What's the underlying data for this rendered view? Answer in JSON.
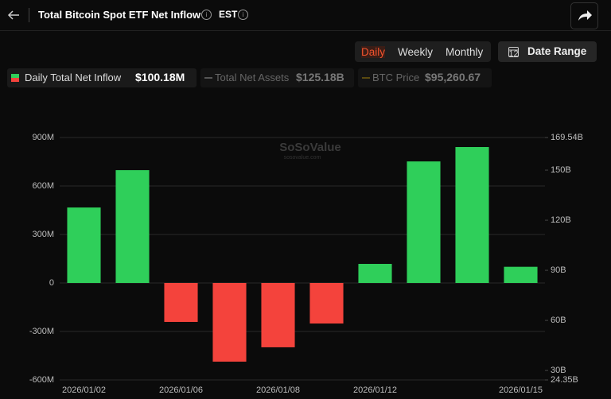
{
  "header": {
    "title": "Total Bitcoin Spot ETF Net Inflow",
    "timezone": "EST"
  },
  "controls": {
    "tabs": [
      "Daily",
      "Weekly",
      "Monthly"
    ],
    "date_range": "Date Range"
  },
  "legend": [
    {
      "name": "Daily Total Net Inflow",
      "value": "$100.18M"
    },
    {
      "name": "Total Net Assets",
      "value": "$125.18B"
    },
    {
      "name": "BTC Price",
      "value": "$95,260.67"
    }
  ],
  "chart_data": {
    "type": "bar",
    "watermark": "SoSoValue",
    "watermark_sub": "sosovalue.com",
    "categories": [
      "2026/01/02",
      null,
      "2026/01/06",
      null,
      "2026/01/08",
      null,
      "2026/01/12",
      null,
      null,
      "2026/01/15"
    ],
    "values": [
      467,
      698,
      -241,
      -487,
      -398,
      -251,
      118,
      752,
      841,
      100
    ],
    "positive_color": "#2fcf5a",
    "negative_color": "#f4433c",
    "ylim": [
      -600,
      900
    ],
    "yticks": [
      {
        "value": -600,
        "label": "-600M"
      },
      {
        "value": -300,
        "label": "-300M"
      },
      0,
      {
        "value": 300,
        "label": "300M"
      },
      {
        "value": 600,
        "label": "600M"
      },
      {
        "value": 900,
        "label": "900M"
      }
    ],
    "y2lim": [
      24.35,
      169.54
    ],
    "y2ticks": [
      {
        "value": 24.35,
        "label": "24.35B"
      },
      {
        "value": 30,
        "label": "30B"
      },
      {
        "value": 60,
        "label": "60B"
      },
      {
        "value": 90,
        "label": "90B"
      },
      {
        "value": 120,
        "label": "120B"
      },
      {
        "value": 150,
        "label": "150B"
      },
      {
        "value": 169.54,
        "label": "169.54B"
      }
    ],
    "grid": true
  }
}
